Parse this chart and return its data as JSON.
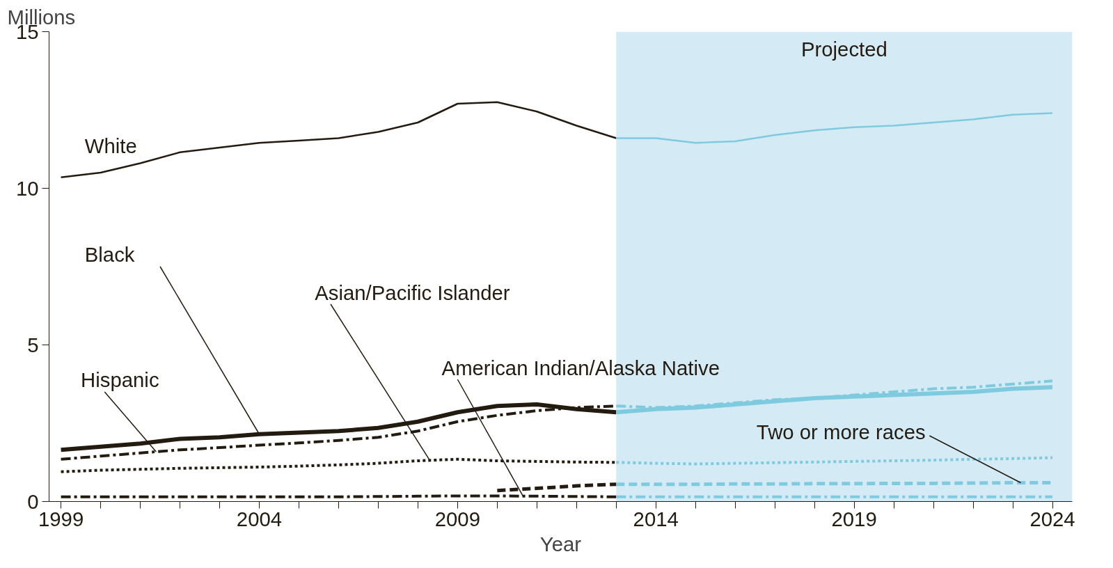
{
  "chart_data": {
    "type": "line",
    "xlabel": "Year",
    "ylabel": "Millions",
    "xlim": [
      1998.7,
      2024.5
    ],
    "ylim": [
      0,
      15
    ],
    "xticks": [
      1999,
      {
        "value": 2000,
        "label": null
      },
      {
        "value": 2001,
        "label": null
      },
      {
        "value": 2002,
        "label": null
      },
      {
        "value": 2003,
        "label": null
      },
      2004,
      {
        "value": 2005,
        "label": null
      },
      {
        "value": 2006,
        "label": null
      },
      {
        "value": 2007,
        "label": null
      },
      {
        "value": 2008,
        "label": null
      },
      2009,
      {
        "value": 2010,
        "label": null
      },
      {
        "value": 2011,
        "label": null
      },
      {
        "value": 2012,
        "label": null
      },
      {
        "value": 2013,
        "label": null
      },
      2014,
      {
        "value": 2015,
        "label": null
      },
      {
        "value": 2016,
        "label": null
      },
      {
        "value": 2017,
        "label": null
      },
      {
        "value": 2018,
        "label": null
      },
      2019,
      {
        "value": 2020,
        "label": null
      },
      {
        "value": 2021,
        "label": null
      },
      {
        "value": 2022,
        "label": null
      },
      {
        "value": 2023,
        "label": null
      },
      2024
    ],
    "yticks": [
      0,
      5,
      10,
      15
    ],
    "grid": false,
    "legend": false,
    "bands": [
      {
        "axis": "x",
        "from": 2013,
        "to": 2024.5,
        "label": "Projected",
        "color": "#d4eaf4"
      }
    ],
    "series": [
      {
        "name": "White",
        "color": "#231a10",
        "line_style": "solid",
        "x": [
          1999,
          2000,
          2001,
          2002,
          2003,
          2004,
          2005,
          2006,
          2007,
          2008,
          2009,
          2010,
          2011,
          2012,
          2013
        ],
        "values": [
          10.35,
          10.5,
          10.8,
          11.15,
          11.3,
          11.45,
          11.52,
          11.6,
          11.8,
          12.1,
          12.7,
          12.75,
          12.45,
          12.0,
          11.6
        ]
      },
      {
        "name": "Black",
        "color": "#231a10",
        "line_style": "solid",
        "x": [
          1999,
          2000,
          2001,
          2002,
          2003,
          2004,
          2005,
          2006,
          2007,
          2008,
          2009,
          2010,
          2011,
          2012,
          2013
        ],
        "values": [
          1.65,
          1.75,
          1.85,
          2.0,
          2.05,
          2.15,
          2.2,
          2.25,
          2.35,
          2.55,
          2.85,
          3.05,
          3.1,
          2.95,
          2.85
        ]
      },
      {
        "name": "Hispanic",
        "color": "#231a10",
        "line_style": "dashdot",
        "x": [
          1999,
          2000,
          2001,
          2002,
          2003,
          2004,
          2005,
          2006,
          2007,
          2008,
          2009,
          2010,
          2011,
          2012,
          2013
        ],
        "values": [
          1.35,
          1.45,
          1.55,
          1.65,
          1.72,
          1.8,
          1.87,
          1.95,
          2.05,
          2.25,
          2.55,
          2.75,
          2.9,
          3.0,
          3.05
        ]
      },
      {
        "name": "Asian/Pacific Islander",
        "color": "#231a10",
        "line_style": "dotted",
        "x": [
          1999,
          2000,
          2001,
          2002,
          2003,
          2004,
          2005,
          2006,
          2007,
          2008,
          2009,
          2010,
          2011,
          2012,
          2013
        ],
        "values": [
          0.95,
          1.0,
          1.03,
          1.06,
          1.08,
          1.1,
          1.13,
          1.17,
          1.22,
          1.3,
          1.35,
          1.3,
          1.28,
          1.26,
          1.25
        ]
      },
      {
        "name": "American Indian/Alaska Native",
        "color": "#231a10",
        "line_style": "dashdot",
        "x": [
          1999,
          2000,
          2001,
          2002,
          2003,
          2004,
          2005,
          2006,
          2007,
          2008,
          2009,
          2010,
          2011,
          2012,
          2013
        ],
        "values": [
          0.15,
          0.15,
          0.15,
          0.15,
          0.15,
          0.15,
          0.15,
          0.15,
          0.16,
          0.17,
          0.18,
          0.18,
          0.17,
          0.16,
          0.15
        ]
      },
      {
        "color": "#231a10",
        "line_style": "dashed",
        "x": [
          2010,
          2011,
          2012,
          2013
        ],
        "values": [
          0.35,
          0.42,
          0.5,
          0.55
        ]
      },
      {
        "color": "#7ecbe0",
        "line_style": "solid",
        "x": [
          2013,
          2014,
          2015,
          2016,
          2017,
          2018,
          2019,
          2020,
          2021,
          2022,
          2023,
          2024
        ],
        "values": [
          11.6,
          11.6,
          11.45,
          11.5,
          11.7,
          11.85,
          11.95,
          12.0,
          12.1,
          12.2,
          12.35,
          12.4
        ]
      },
      {
        "color": "#7ecbe0",
        "line_style": "solid",
        "x": [
          2013,
          2014,
          2015,
          2016,
          2017,
          2018,
          2019,
          2020,
          2021,
          2022,
          2023,
          2024
        ],
        "values": [
          2.85,
          2.95,
          3.0,
          3.1,
          3.2,
          3.3,
          3.35,
          3.4,
          3.45,
          3.5,
          3.6,
          3.65
        ]
      },
      {
        "color": "#7ecbe0",
        "line_style": "dashdot",
        "x": [
          2013,
          2014,
          2015,
          2016,
          2017,
          2018,
          2019,
          2020,
          2021,
          2022,
          2023,
          2024
        ],
        "values": [
          3.05,
          3.0,
          3.05,
          3.15,
          3.25,
          3.3,
          3.4,
          3.5,
          3.6,
          3.65,
          3.75,
          3.85
        ]
      },
      {
        "color": "#7ecbe0",
        "line_style": "dotted",
        "x": [
          2013,
          2014,
          2015,
          2016,
          2017,
          2018,
          2019,
          2020,
          2021,
          2022,
          2023,
          2024
        ],
        "values": [
          1.25,
          1.22,
          1.2,
          1.22,
          1.24,
          1.26,
          1.28,
          1.3,
          1.32,
          1.35,
          1.37,
          1.4
        ]
      },
      {
        "color": "#7ecbe0",
        "line_style": "dashdot",
        "x": [
          2013,
          2014,
          2015,
          2016,
          2017,
          2018,
          2019,
          2020,
          2021,
          2022,
          2023,
          2024
        ],
        "values": [
          0.15,
          0.15,
          0.15,
          0.15,
          0.15,
          0.15,
          0.15,
          0.15,
          0.15,
          0.15,
          0.15,
          0.15
        ]
      },
      {
        "name": "Two or more races",
        "color": "#7ecbe0",
        "line_style": "dashed",
        "x": [
          2013,
          2014,
          2015,
          2016,
          2017,
          2018,
          2019,
          2020,
          2021,
          2022,
          2023,
          2024
        ],
        "values": [
          0.55,
          0.55,
          0.55,
          0.56,
          0.56,
          0.57,
          0.57,
          0.58,
          0.58,
          0.59,
          0.6,
          0.6
        ]
      }
    ]
  }
}
